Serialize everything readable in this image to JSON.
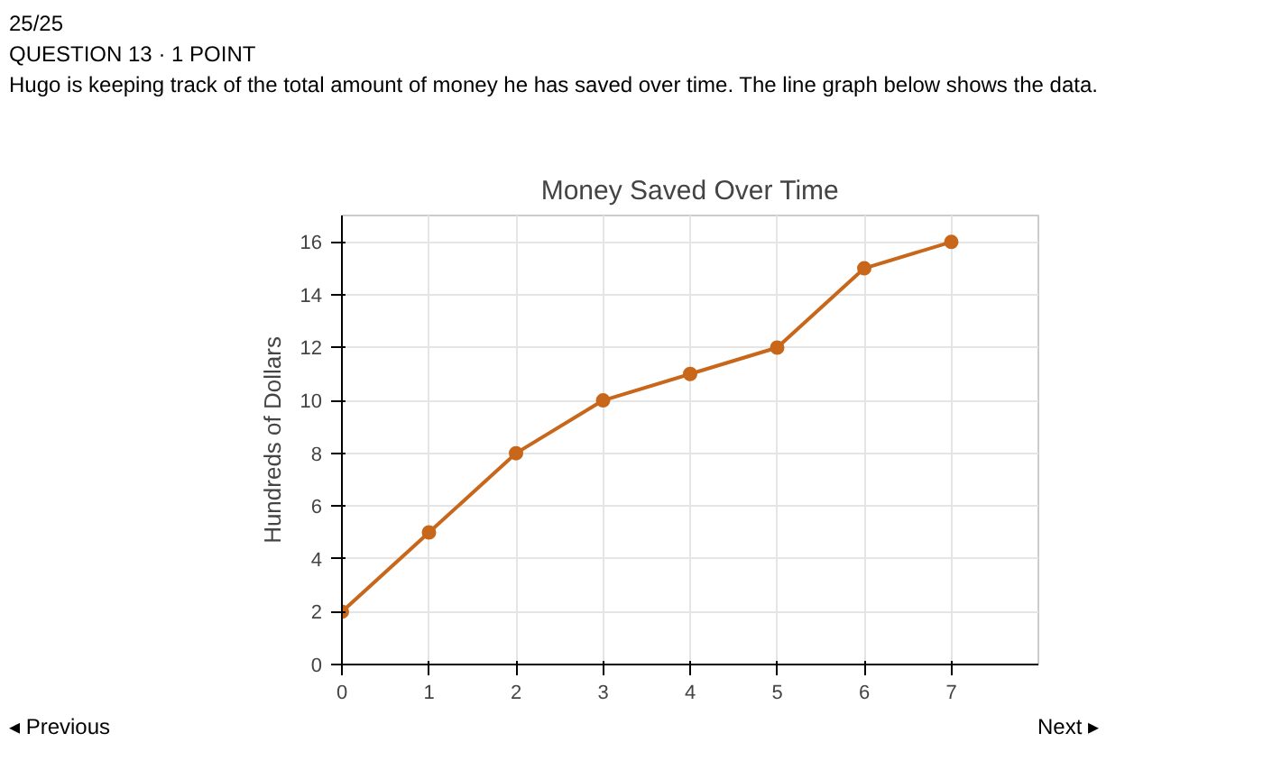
{
  "chart_data": {
    "type": "line",
    "title": "Money Saved Over Time",
    "ylabel": "Hundreds of Dollars",
    "x": [
      0,
      1,
      2,
      3,
      4,
      5,
      6,
      7
    ],
    "series": [
      {
        "color": "#c8661a",
        "values": [
          2,
          5,
          8,
          10,
          11,
          12,
          15,
          16
        ]
      }
    ],
    "xlim": [
      0,
      8
    ],
    "ylim": [
      0,
      17
    ],
    "xticks": [
      0,
      1,
      2,
      3,
      4,
      5,
      6,
      7
    ],
    "yticks": [
      0,
      2,
      4,
      6,
      8,
      10,
      12,
      14,
      16
    ],
    "grid": true,
    "marker": "circle",
    "line_style": "solid",
    "annotations": [
      "25/25",
      "QUESTION 13 · 1 POINT",
      "Hugo is keeping track of the total amount of money he has saved over time. The line graph below shows the data.",
      "◂ Previous",
      "Next ▸"
    ]
  }
}
